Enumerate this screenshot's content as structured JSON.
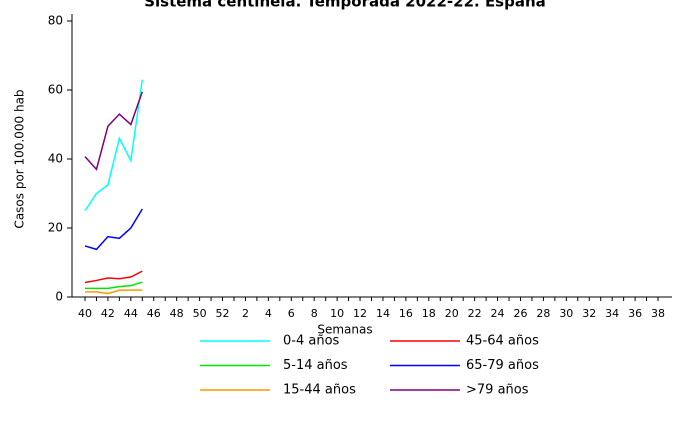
{
  "chart_data": {
    "type": "line",
    "title": "Sistema centinela. Temporada 2022-22. España",
    "x_label": "Semanas",
    "y_label": "Casos por 100.000 hab",
    "categories": [
      "40",
      null,
      "42",
      null,
      "44",
      null,
      "46",
      null,
      "48",
      null,
      "50",
      null,
      "52",
      null,
      "2",
      null,
      "4",
      null,
      "6",
      null,
      "8",
      null,
      "10",
      null,
      "12",
      null,
      "14",
      null,
      "16",
      null,
      "18",
      null,
      "20",
      null,
      "22",
      null,
      "24",
      null,
      "26",
      null,
      "28",
      null,
      "30",
      null,
      "32",
      null,
      "34",
      null,
      "36",
      null,
      "38"
    ],
    "ylim": [
      0,
      80
    ],
    "yticks": [
      0,
      20,
      40,
      60,
      80
    ],
    "series": [
      {
        "name": "0-4 años",
        "color": "#00ffff",
        "values": [
          25,
          30,
          32.5,
          46,
          39.5,
          63,
          null,
          null,
          null,
          null,
          null,
          null,
          null,
          null,
          null,
          null,
          null,
          null,
          null,
          null,
          null,
          null,
          null,
          null,
          null,
          null,
          null,
          null,
          null,
          null,
          null,
          null,
          null,
          null,
          null,
          null,
          null,
          null,
          null,
          null,
          null,
          null,
          null,
          null,
          null,
          null,
          null,
          null,
          null,
          null,
          null
        ]
      },
      {
        "name": "5-14 años",
        "color": "#00e600",
        "values": [
          2.5,
          2.5,
          2.5,
          3,
          3.3,
          4.3,
          null,
          null,
          null,
          null,
          null,
          null,
          null,
          null,
          null,
          null,
          null,
          null,
          null,
          null,
          null,
          null,
          null,
          null,
          null,
          null,
          null,
          null,
          null,
          null,
          null,
          null,
          null,
          null,
          null,
          null,
          null,
          null,
          null,
          null,
          null,
          null,
          null,
          null,
          null,
          null,
          null,
          null,
          null,
          null,
          null
        ]
      },
      {
        "name": "15-44 años",
        "color": "#ff9900",
        "values": [
          1.5,
          1.5,
          1,
          2,
          2,
          2,
          null,
          null,
          null,
          null,
          null,
          null,
          null,
          null,
          null,
          null,
          null,
          null,
          null,
          null,
          null,
          null,
          null,
          null,
          null,
          null,
          null,
          null,
          null,
          null,
          null,
          null,
          null,
          null,
          null,
          null,
          null,
          null,
          null,
          null,
          null,
          null,
          null,
          null,
          null,
          null,
          null,
          null,
          null,
          null,
          null
        ]
      },
      {
        "name": "45-64 años",
        "color": "#ff0000",
        "values": [
          4.2,
          4.8,
          5.5,
          5.3,
          5.8,
          7.5,
          null,
          null,
          null,
          null,
          null,
          null,
          null,
          null,
          null,
          null,
          null,
          null,
          null,
          null,
          null,
          null,
          null,
          null,
          null,
          null,
          null,
          null,
          null,
          null,
          null,
          null,
          null,
          null,
          null,
          null,
          null,
          null,
          null,
          null,
          null,
          null,
          null,
          null,
          null,
          null,
          null,
          null,
          null,
          null,
          null
        ]
      },
      {
        "name": "65-79 años",
        "color": "#0000ff",
        "values": [
          14.8,
          13.8,
          17.5,
          17,
          20,
          25.5,
          null,
          null,
          null,
          null,
          null,
          null,
          null,
          null,
          null,
          null,
          null,
          null,
          null,
          null,
          null,
          null,
          null,
          null,
          null,
          null,
          null,
          null,
          null,
          null,
          null,
          null,
          null,
          null,
          null,
          null,
          null,
          null,
          null,
          null,
          null,
          null,
          null,
          null,
          null,
          null,
          null,
          null,
          null,
          null,
          null
        ]
      },
      {
        "name": ">79 años",
        "color": "#800080",
        "values": [
          40.7,
          37,
          49.5,
          53,
          50,
          59.5,
          null,
          null,
          null,
          null,
          null,
          null,
          null,
          null,
          null,
          null,
          null,
          null,
          null,
          null,
          null,
          null,
          null,
          null,
          null,
          null,
          null,
          null,
          null,
          null,
          null,
          null,
          null,
          null,
          null,
          null,
          null,
          null,
          null,
          null,
          null,
          null,
          null,
          null,
          null,
          null,
          null,
          null,
          null,
          null,
          null
        ]
      }
    ]
  }
}
